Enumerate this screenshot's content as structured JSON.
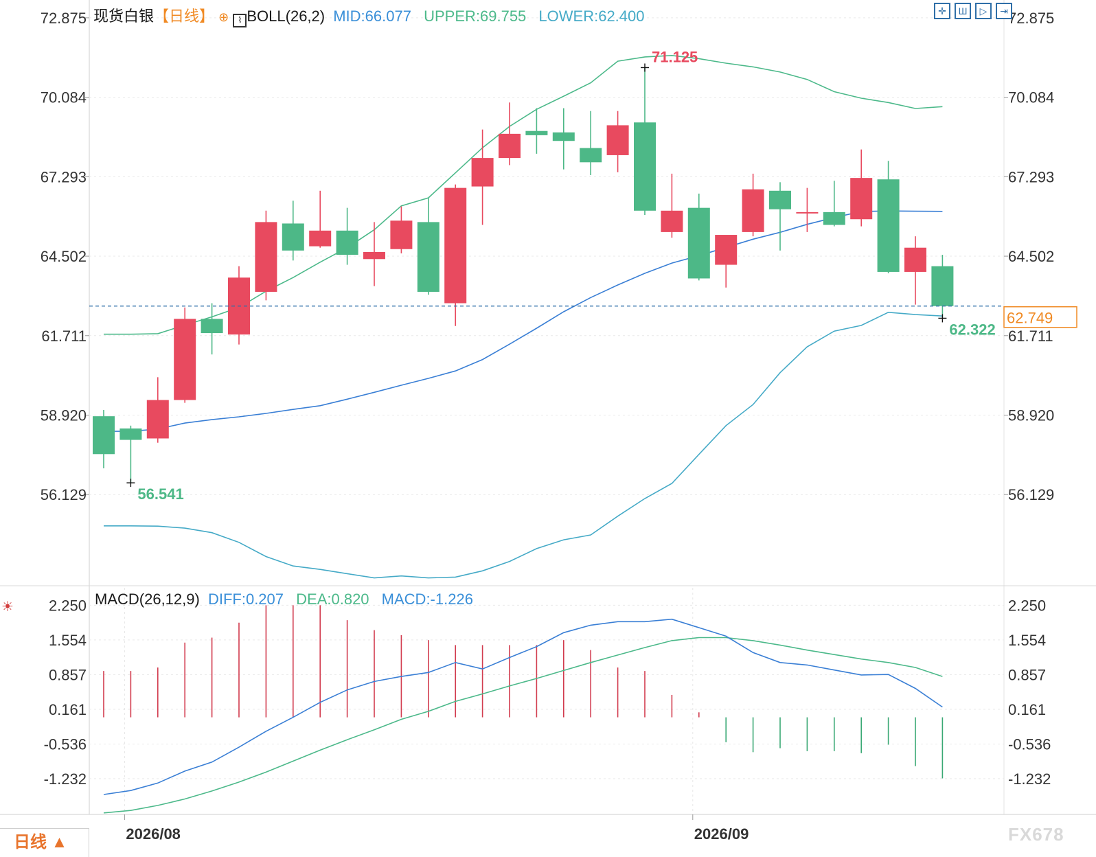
{
  "header": {
    "instrument": "现货白银",
    "period_tag": "【日线】",
    "boll_label": "BOLL(26,2)",
    "mid": "MID:66.077",
    "upper": "UPPER:69.755",
    "lower": "LOWER:62.400"
  },
  "macd_header": {
    "label": "MACD(26,12,9)",
    "diff": "DIFF:0.207",
    "dea": "DEA:0.820",
    "macd": "MACD:-1.226"
  },
  "toolbar": {
    "icons": [
      "crosshair-icon",
      "bar-mode-icon",
      "step-forward-icon",
      "jump-end-icon"
    ]
  },
  "period_button": {
    "label": "日线 ▲"
  },
  "brand": "FX678",
  "colors": {
    "up": "#e84a5f",
    "down": "#4db887",
    "mid": "#3a7fd5",
    "upper": "#4cb98a",
    "lower": "#45aac7",
    "diff": "#3a7fd5",
    "dea": "#4cb98a",
    "price_line": "#2f6fa8",
    "price_tag": "#f08a24"
  },
  "chart_data": [
    {
      "type": "candlestick",
      "title": "现货白银【日线】",
      "y_ticks": [
        "72.875",
        "70.084",
        "67.293",
        "64.502",
        "61.711",
        "58.920",
        "56.129"
      ],
      "ylim": [
        52.95,
        73.5
      ],
      "x_labels": [
        {
          "index": 1,
          "label": "2026/08"
        },
        {
          "index": 22,
          "label": "2026/09"
        }
      ],
      "candles": [
        {
          "open": 58.88,
          "high": 59.1,
          "low": 57.05,
          "close": 57.55
        },
        {
          "open": 58.45,
          "high": 58.55,
          "low": 56.54,
          "close": 58.05
        },
        {
          "open": 58.1,
          "high": 60.25,
          "low": 57.95,
          "close": 59.45
        },
        {
          "open": 59.45,
          "high": 62.7,
          "low": 59.35,
          "close": 62.3
        },
        {
          "open": 62.3,
          "high": 62.85,
          "low": 61.05,
          "close": 61.8
        },
        {
          "open": 61.75,
          "high": 64.15,
          "low": 61.4,
          "close": 63.75
        },
        {
          "open": 63.25,
          "high": 66.1,
          "low": 62.95,
          "close": 65.7
        },
        {
          "open": 65.65,
          "high": 66.45,
          "low": 64.35,
          "close": 64.7
        },
        {
          "open": 64.85,
          "high": 66.8,
          "low": 64.8,
          "close": 65.4
        },
        {
          "open": 65.4,
          "high": 66.2,
          "low": 64.2,
          "close": 64.55
        },
        {
          "open": 64.4,
          "high": 65.7,
          "low": 63.45,
          "close": 64.65
        },
        {
          "open": 64.75,
          "high": 66.25,
          "low": 64.6,
          "close": 65.75
        },
        {
          "open": 65.7,
          "high": 66.55,
          "low": 63.15,
          "close": 63.25
        },
        {
          "open": 62.85,
          "high": 67.02,
          "low": 62.05,
          "close": 66.9
        },
        {
          "open": 66.95,
          "high": 68.95,
          "low": 65.6,
          "close": 67.95
        },
        {
          "open": 67.95,
          "high": 69.9,
          "low": 67.7,
          "close": 68.8
        },
        {
          "open": 68.9,
          "high": 69.7,
          "low": 68.1,
          "close": 68.75
        },
        {
          "open": 68.85,
          "high": 69.7,
          "low": 67.55,
          "close": 68.55
        },
        {
          "open": 68.3,
          "high": 69.6,
          "low": 67.35,
          "close": 67.8
        },
        {
          "open": 68.05,
          "high": 69.6,
          "low": 67.45,
          "close": 69.1
        },
        {
          "open": 69.2,
          "high": 71.125,
          "low": 65.95,
          "close": 66.1
        },
        {
          "open": 65.35,
          "high": 67.4,
          "low": 65.15,
          "close": 66.1
        },
        {
          "open": 66.2,
          "high": 66.7,
          "low": 63.65,
          "close": 63.72
        },
        {
          "open": 64.2,
          "high": 65.15,
          "low": 63.4,
          "close": 65.25
        },
        {
          "open": 65.35,
          "high": 67.4,
          "low": 65.2,
          "close": 66.85
        },
        {
          "open": 66.8,
          "high": 67.1,
          "low": 64.7,
          "close": 66.15
        },
        {
          "open": 66.05,
          "high": 66.9,
          "low": 65.35,
          "close": 66.05
        },
        {
          "open": 66.05,
          "high": 67.15,
          "low": 65.55,
          "close": 65.6
        },
        {
          "open": 65.8,
          "high": 68.25,
          "low": 65.55,
          "close": 67.25
        },
        {
          "open": 67.2,
          "high": 67.85,
          "low": 63.9,
          "close": 63.95
        },
        {
          "open": 63.95,
          "high": 65.2,
          "low": 62.8,
          "close": 64.8
        },
        {
          "open": 64.15,
          "high": 64.55,
          "low": 62.322,
          "close": 62.749
        }
      ],
      "boll_upper": [
        61.76,
        61.76,
        61.78,
        62.08,
        62.37,
        62.7,
        63.27,
        63.75,
        64.29,
        64.8,
        65.43,
        66.27,
        66.55,
        67.43,
        68.31,
        69.06,
        69.66,
        70.12,
        70.59,
        71.35,
        71.5,
        71.55,
        71.44,
        71.28,
        71.15,
        70.97,
        70.71,
        70.28,
        70.05,
        69.9,
        69.69,
        69.755
      ],
      "boll_mid": [
        58.35,
        58.35,
        58.43,
        58.64,
        58.76,
        58.86,
        58.98,
        59.12,
        59.25,
        59.48,
        59.72,
        59.97,
        60.21,
        60.47,
        60.87,
        61.41,
        61.97,
        62.55,
        63.05,
        63.49,
        63.9,
        64.26,
        64.52,
        64.81,
        65.1,
        65.34,
        65.62,
        65.86,
        66.07,
        66.09,
        66.08,
        66.077
      ],
      "boll_lower": [
        55.03,
        55.03,
        55.02,
        54.95,
        54.79,
        54.45,
        53.95,
        53.62,
        53.5,
        53.35,
        53.2,
        53.27,
        53.2,
        53.23,
        53.45,
        53.78,
        54.23,
        54.54,
        54.71,
        55.37,
        55.99,
        56.52,
        57.54,
        58.55,
        59.29,
        60.41,
        61.32,
        61.87,
        62.07,
        62.53,
        62.45,
        62.4
      ],
      "annotations": [
        {
          "label": "71.125",
          "candle": 20,
          "value": 71.125
        },
        {
          "label": "56.541",
          "candle": 1,
          "value": 56.541
        },
        {
          "label": "62.322",
          "candle": 31,
          "value": 62.322
        }
      ],
      "last_price": {
        "label": "62.749",
        "value": 62.749
      }
    },
    {
      "type": "macd",
      "title": "MACD(26,12,9)",
      "y_ticks": [
        "2.250",
        "1.554",
        "0.857",
        "0.161",
        "-0.536",
        "-1.232"
      ],
      "ylim": [
        -1.95,
        2.6
      ],
      "diff": [
        -1.55,
        -1.47,
        -1.32,
        -1.08,
        -0.9,
        -0.6,
        -0.28,
        0.0,
        0.3,
        0.55,
        0.72,
        0.82,
        0.9,
        1.1,
        0.97,
        1.2,
        1.42,
        1.7,
        1.85,
        1.92,
        1.92,
        1.97,
        1.8,
        1.63,
        1.3,
        1.1,
        1.05,
        0.95,
        0.85,
        0.86,
        0.58,
        0.207
      ],
      "dea": [
        -1.92,
        -1.87,
        -1.77,
        -1.64,
        -1.48,
        -1.3,
        -1.1,
        -0.88,
        -0.66,
        -0.45,
        -0.25,
        -0.04,
        0.12,
        0.32,
        0.47,
        0.63,
        0.78,
        0.94,
        1.1,
        1.25,
        1.4,
        1.54,
        1.6,
        1.6,
        1.54,
        1.45,
        1.35,
        1.26,
        1.17,
        1.1,
        1.0,
        0.82
      ],
      "macd": [
        0.93,
        0.93,
        1.0,
        1.5,
        1.6,
        1.9,
        2.25,
        2.25,
        2.25,
        1.95,
        1.75,
        1.65,
        1.55,
        1.45,
        1.45,
        1.45,
        1.45,
        1.55,
        1.35,
        1.0,
        0.93,
        0.45,
        0.1,
        -0.5,
        -0.7,
        -0.62,
        -0.68,
        -0.68,
        -0.72,
        -0.55,
        -0.98,
        -1.226
      ]
    }
  ]
}
